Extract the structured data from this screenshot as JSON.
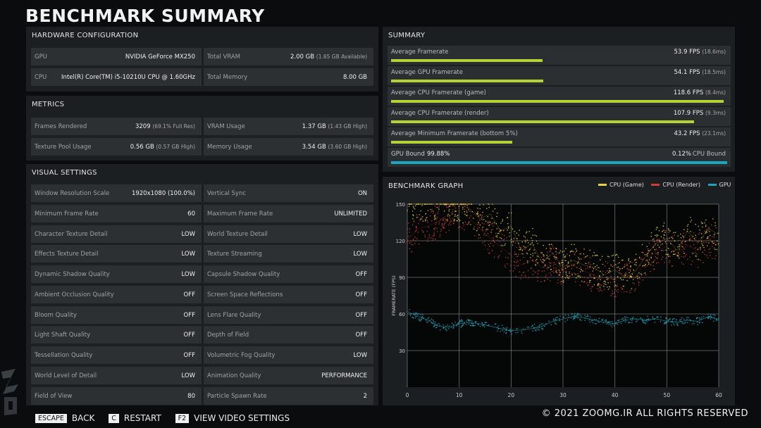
{
  "page_title": "BENCHMARK SUMMARY",
  "hardware": {
    "title": "HARDWARE CONFIGURATION",
    "gpu_label": "GPU",
    "gpu_value": "NVIDIA GeForce MX250",
    "cpu_label": "CPU",
    "cpu_value": "Intel(R) Core(TM) i5-10210U CPU @ 1.60GHz",
    "vram_label": "Total VRAM",
    "vram_value": "2.00 GB",
    "vram_sub": "(1.65 GB Available)",
    "mem_label": "Total Memory",
    "mem_value": "8.00 GB"
  },
  "metrics": {
    "title": "METRICS",
    "frames_label": "Frames Rendered",
    "frames_value": "3209",
    "frames_sub": "(69.1% Full Res)",
    "vram_label": "VRAM Usage",
    "vram_value": "1.37 GB",
    "vram_sub": "(1.43 GB High)",
    "pool_label": "Texture Pool Usage",
    "pool_value": "0.56 GB",
    "pool_sub": "(0.57 GB High)",
    "mem_label": "Memory Usage",
    "mem_value": "3.54 GB",
    "mem_sub": "(3.60 GB High)"
  },
  "visual": {
    "title": "VISUAL SETTINGS",
    "rows": [
      {
        "l1": "Window Resolution Scale",
        "v1": "1920x1080 (100.0%)",
        "l2": "Vertical Sync",
        "v2": "ON"
      },
      {
        "l1": "Minimum Frame Rate",
        "v1": "60",
        "l2": "Maximum Frame Rate",
        "v2": "UNLIMITED"
      },
      {
        "l1": "Character Texture Detail",
        "v1": "LOW",
        "l2": "World Texture Detail",
        "v2": "LOW"
      },
      {
        "l1": "Effects Texture Detail",
        "v1": "LOW",
        "l2": "Texture Streaming",
        "v2": "LOW"
      },
      {
        "l1": "Dynamic Shadow Quality",
        "v1": "LOW",
        "l2": "Capsule Shadow Quality",
        "v2": "OFF"
      },
      {
        "l1": "Ambient Occlusion Quality",
        "v1": "OFF",
        "l2": "Screen Space Reflections",
        "v2": "OFF"
      },
      {
        "l1": "Bloom Quality",
        "v1": "OFF",
        "l2": "Lens Flare Quality",
        "v2": "OFF"
      },
      {
        "l1": "Light Shaft Quality",
        "v1": "OFF",
        "l2": "Depth of Field",
        "v2": "OFF"
      },
      {
        "l1": "Tessellation Quality",
        "v1": "OFF",
        "l2": "Volumetric Fog Quality",
        "v2": "LOW"
      },
      {
        "l1": "World Level of Detail",
        "v1": "LOW",
        "l2": "Animation Quality",
        "v2": "PERFORMANCE"
      },
      {
        "l1": "Field of View",
        "v1": "80",
        "l2": "Particle Spawn Rate",
        "v2": "2"
      }
    ]
  },
  "summary": {
    "title": "SUMMARY",
    "rows": [
      {
        "label": "Average Framerate",
        "value": "53.9 FPS",
        "sub": "(18.6ms)",
        "fill": 0.455
      },
      {
        "label": "Average GPU Framerate",
        "value": "54.1 FPS",
        "sub": "(18.5ms)",
        "fill": 0.457
      },
      {
        "label": "Average CPU Framerate (game)",
        "value": "118.6 FPS",
        "sub": "(8.4ms)",
        "fill": 1.0
      },
      {
        "label": "Average CPU Framerate (render)",
        "value": "107.9 FPS",
        "sub": "(9.3ms)",
        "fill": 0.91
      },
      {
        "label": "Average Minimum Framerate (bottom 5%)",
        "value": "43.2 FPS",
        "sub": "(23.1ms)",
        "fill": 0.364
      }
    ],
    "gpu_bound_label": "GPU Bound",
    "gpu_bound_value": "99.88%",
    "cpu_bound_label": "CPU Bound",
    "cpu_bound_value": "0.12%"
  },
  "graph": {
    "title": "BENCHMARK GRAPH",
    "legend": [
      "CPU (Game)",
      "CPU (Render)",
      "GPU"
    ],
    "colors": {
      "cpu_game": "#e7cf3e",
      "cpu_render": "#cf3a3a",
      "gpu": "#1ba6bf"
    }
  },
  "chart_data": {
    "type": "scatter",
    "title": "BENCHMARK GRAPH",
    "xlabel": "TIME (SEC)",
    "ylabel": "FRAMERATE (FPS)",
    "xlim": [
      0,
      60
    ],
    "ylim": [
      0,
      150
    ],
    "x_ticks": [
      0,
      10,
      20,
      30,
      40,
      50,
      60
    ],
    "y_ticks": [
      30,
      60,
      90,
      120,
      150
    ],
    "grid": true,
    "legend_position": "top-right",
    "series": [
      {
        "name": "CPU (Game)",
        "color": "#e7cf3e",
        "x": [
          0,
          2,
          4,
          6,
          8,
          10,
          12,
          14,
          16,
          18,
          20,
          22,
          24,
          26,
          28,
          30,
          32,
          34,
          36,
          38,
          40,
          42,
          44,
          46,
          48,
          50,
          52,
          54,
          56,
          58,
          60
        ],
        "y": [
          150,
          150,
          150,
          150,
          150,
          150,
          146,
          138,
          142,
          128,
          132,
          112,
          118,
          102,
          110,
          98,
          104,
          100,
          98,
          92,
          96,
          90,
          95,
          108,
          118,
          122,
          112,
          128,
          118,
          130,
          125
        ]
      },
      {
        "name": "CPU (Render)",
        "color": "#cf3a3a",
        "x": [
          0,
          2,
          4,
          6,
          8,
          10,
          12,
          14,
          16,
          18,
          20,
          22,
          24,
          26,
          28,
          30,
          32,
          34,
          36,
          38,
          40,
          42,
          44,
          46,
          48,
          50,
          52,
          54,
          56,
          58,
          60
        ],
        "y": [
          120,
          130,
          132,
          136,
          142,
          145,
          138,
          130,
          122,
          115,
          108,
          100,
          104,
          98,
          102,
          96,
          100,
          95,
          92,
          90,
          88,
          92,
          90,
          104,
          112,
          115,
          110,
          116,
          112,
          120,
          118
        ]
      },
      {
        "name": "GPU",
        "color": "#1ba6bf",
        "x": [
          0,
          2,
          4,
          6,
          8,
          10,
          12,
          14,
          16,
          18,
          20,
          22,
          24,
          26,
          28,
          30,
          32,
          34,
          36,
          38,
          40,
          42,
          44,
          46,
          48,
          50,
          52,
          54,
          56,
          58,
          60
        ],
        "y": [
          62,
          58,
          55,
          50,
          49,
          52,
          53,
          52,
          50,
          48,
          46,
          47,
          48,
          50,
          54,
          56,
          58,
          57,
          55,
          53,
          52,
          55,
          56,
          55,
          56,
          54,
          53,
          55,
          54,
          58,
          55
        ]
      }
    ]
  },
  "footer": {
    "escape_key": "ESCAPE",
    "escape_label": "BACK",
    "c_key": "C",
    "c_label": "RESTART",
    "f2_key": "F2",
    "f2_label": "VIEW VIDEO SETTINGS"
  },
  "copyright": "© 2021 ZOOMG.IR ALL RIGHTS RESERVED"
}
